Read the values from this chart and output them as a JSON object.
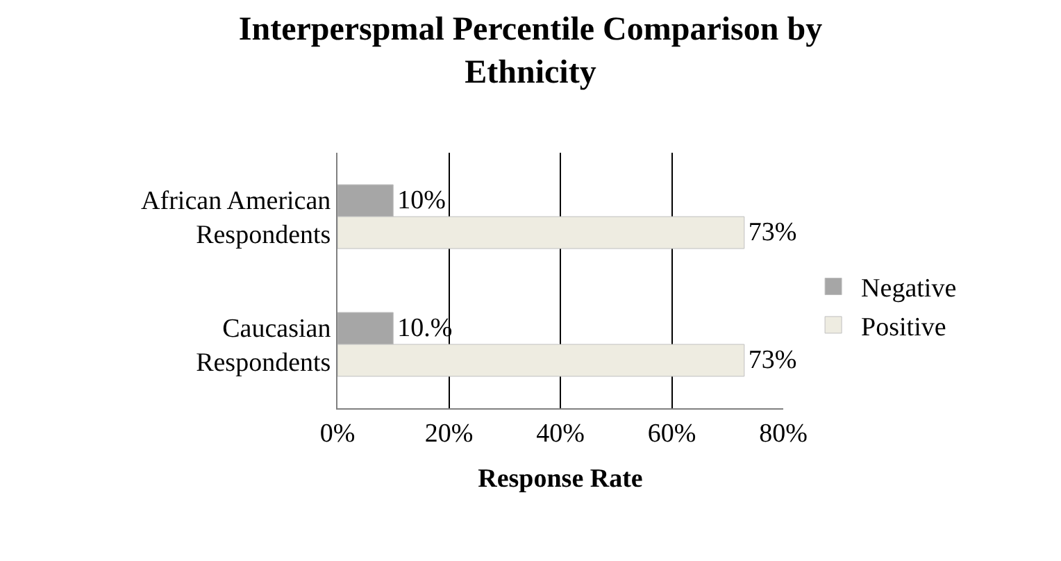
{
  "chart_data": {
    "type": "bar",
    "orientation": "horizontal",
    "title": "Interperspmal Percentile Comparison by Ethnicity",
    "xlabel": "Response Rate",
    "categories": [
      "African American Respondents",
      "Caucasian Respondents"
    ],
    "series": [
      {
        "name": "Negative",
        "color": "#a6a6a6",
        "values": [
          10,
          10
        ],
        "value_labels": [
          "10%",
          "10.%"
        ]
      },
      {
        "name": "Positive",
        "color": "#eeece1",
        "values": [
          73,
          73
        ],
        "value_labels": [
          "73%",
          "73%"
        ]
      }
    ],
    "xlim": [
      0,
      80
    ],
    "xticks": [
      {
        "value": 0,
        "label": "0%"
      },
      {
        "value": 20,
        "label": "20%"
      },
      {
        "value": 40,
        "label": "40%"
      },
      {
        "value": 60,
        "label": "60%"
      },
      {
        "value": 80,
        "label": "80%"
      }
    ],
    "grid": "x",
    "legend": "right"
  }
}
